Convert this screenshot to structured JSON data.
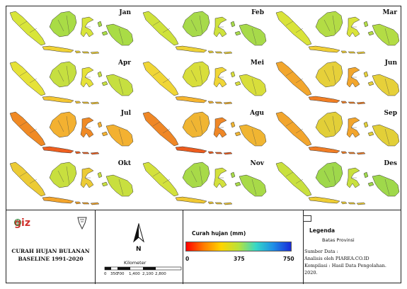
{
  "months": [
    "Jan",
    "Feb",
    "Mar",
    "Apr",
    "Mei",
    "Jun",
    "Jul",
    "Agu",
    "Sep",
    "Okt",
    "Nov",
    "Des"
  ],
  "month_colors": {
    "Jan": [
      "#a9dc46",
      "#d8e53a",
      "#f0d235"
    ],
    "Feb": [
      "#a7da4a",
      "#cfe23c",
      "#eed236"
    ],
    "Mar": [
      "#b3dc45",
      "#d9e33a",
      "#f1cf35"
    ],
    "Apr": [
      "#c6df40",
      "#e6e238",
      "#f4c632"
    ],
    "Mei": [
      "#d8de3b",
      "#f0d636",
      "#f6b52f"
    ],
    "Jun": [
      "#e6d03a",
      "#f2a62d",
      "#f27f24"
    ],
    "Jul": [
      "#f3b131",
      "#f08a25",
      "#ee5f1f"
    ],
    "Agu": [
      "#f0b532",
      "#ef8726",
      "#ec5c1e"
    ],
    "Sep": [
      "#e2cf38",
      "#f2a52d",
      "#f07d25"
    ],
    "Okt": [
      "#c8df3f",
      "#eccb35",
      "#f2a42c"
    ],
    "Nov": [
      "#a8da48",
      "#d3e13c",
      "#f0c833"
    ],
    "Des": [
      "#9fd84b",
      "#c9e03e",
      "#eecd34"
    ]
  },
  "title": "CURAH HUJAN BULANAN\nBASELINE 1991-2020",
  "title_line1": "CURAH HUJAN BULANAN",
  "title_line2": "BASELINE 1991-2020",
  "logo": "giz",
  "north_label": "N",
  "scale": {
    "unit": "Kilometer",
    "ticks": [
      "0",
      "350",
      "700",
      "1,400",
      "2,100",
      "2,800"
    ]
  },
  "colorbar": {
    "title": "Curah hujan (mm)",
    "min": "0",
    "mid": "375",
    "max": "750"
  },
  "legend": {
    "title": "Legenda",
    "item": "Batas Provinsi"
  },
  "source": {
    "line1": "Sumber Data :",
    "line2": "Analisis oleh PIAREA.CO.ID",
    "line3": "Kompilasi : Hasil Data Pengolahan.",
    "line4": "2020."
  }
}
